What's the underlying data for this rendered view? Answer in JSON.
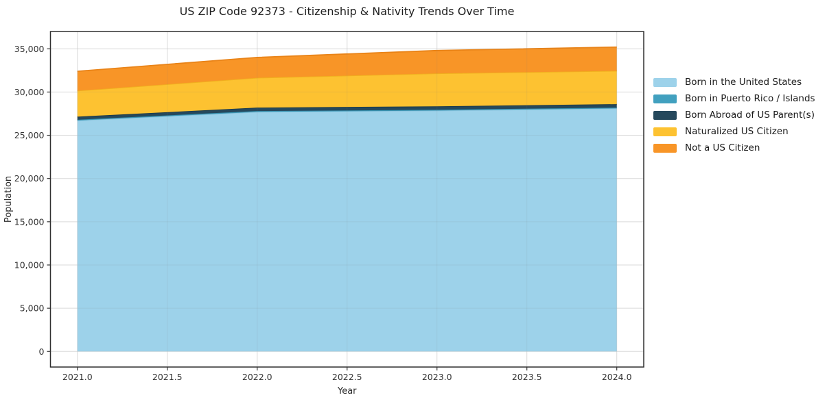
{
  "chart_data": {
    "type": "area",
    "stacked": true,
    "title": "US ZIP Code 92373 - Citizenship & Nativity Trends Over Time",
    "xlabel": "Year",
    "ylabel": "Population",
    "x": [
      2021,
      2022,
      2023,
      2024
    ],
    "series": [
      {
        "name": "Born in the United States",
        "color": "#9dd2ea",
        "edge_color": "#8cc4de",
        "values": [
          26700,
          27700,
          27850,
          28100
        ]
      },
      {
        "name": "Born in Puerto Rico / Islands",
        "color": "#41a0bf",
        "edge_color": "#3690ae",
        "values": [
          100,
          100,
          100,
          100
        ]
      },
      {
        "name": "Born Abroad of US Parent(s)",
        "color": "#25485c",
        "edge_color": "#1d3a4b",
        "values": [
          350,
          400,
          400,
          400
        ]
      },
      {
        "name": "Naturalized US Citizen",
        "color": "#fdc231",
        "edge_color": "#f0b01e",
        "values": [
          3000,
          3450,
          3800,
          3850
        ]
      },
      {
        "name": "Not a US Citizen",
        "color": "#f89527",
        "edge_color": "#e98317",
        "values": [
          2250,
          2350,
          2650,
          2750
        ]
      }
    ],
    "totals": [
      32400,
      34000,
      34800,
      35200
    ],
    "x_ticks": [
      2021.0,
      2021.5,
      2022.0,
      2022.5,
      2023.0,
      2023.5,
      2024.0
    ],
    "x_tick_labels": [
      "2021.0",
      "2021.5",
      "2022.0",
      "2022.5",
      "2023.0",
      "2023.5",
      "2024.0"
    ],
    "y_ticks": [
      0,
      5000,
      10000,
      15000,
      20000,
      25000,
      30000,
      35000
    ],
    "y_tick_labels": [
      "0",
      "5,000",
      "10,000",
      "15,000",
      "20,000",
      "25,000",
      "30,000",
      "35,000"
    ],
    "xlim": [
      2020.85,
      2024.15
    ],
    "ylim": [
      -1800,
      37000
    ],
    "grid": true,
    "grid_color": "#e7e7e7",
    "border_color": "#2f2f2f",
    "legend_position": "right"
  }
}
